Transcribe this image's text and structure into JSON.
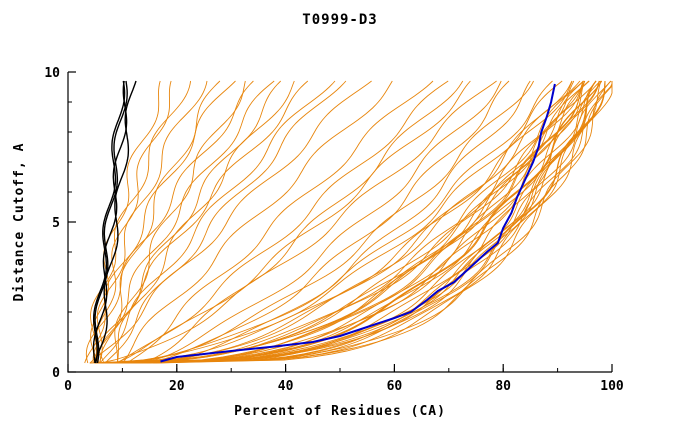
{
  "chart_data": {
    "type": "line",
    "title": "T0999-D3",
    "xlabel": "Percent of Residues (CA)",
    "ylabel": "Distance Cutoff, A",
    "xlim": [
      0,
      100
    ],
    "ylim": [
      0,
      10
    ],
    "x_ticks": [
      0,
      20,
      40,
      60,
      80,
      100
    ],
    "y_ticks": [
      0,
      5,
      10
    ],
    "x_minor_step": 10,
    "y_minor_step": 1,
    "grid": false,
    "legend": "none",
    "colors": {
      "ensemble": "#e8860d",
      "highlight": "#0000cc",
      "reference": "#000000",
      "axis": "#000000"
    },
    "curve_model": "ensemble/reference curves encoded as [x_at_bottom, x_at_top, shape_exponent p]; x(y) = x0 + (x1-x0)*(((y-0.3)/9.4)^p) for y in [0.3, 9.7]",
    "highlight_curve_points": [
      [
        17,
        0.35
      ],
      [
        20,
        0.5
      ],
      [
        30,
        0.7
      ],
      [
        38,
        0.85
      ],
      [
        45,
        1.0
      ],
      [
        50,
        1.2
      ],
      [
        55,
        1.5
      ],
      [
        60,
        1.8
      ],
      [
        63,
        2.0
      ],
      [
        66,
        2.4
      ],
      [
        68,
        2.7
      ],
      [
        71,
        3.0
      ],
      [
        74,
        3.5
      ],
      [
        77,
        4.0
      ],
      [
        79,
        4.3
      ],
      [
        80,
        4.8
      ],
      [
        81.5,
        5.3
      ],
      [
        82.5,
        5.8
      ],
      [
        83.5,
        6.2
      ],
      [
        84.5,
        6.6
      ],
      [
        85.5,
        7.0
      ],
      [
        86.5,
        7.5
      ],
      [
        87,
        8.0
      ],
      [
        88,
        8.5
      ],
      [
        88.8,
        9.0
      ],
      [
        89.5,
        9.6
      ]
    ],
    "reference_curves": [
      [
        4.5,
        10,
        1.0
      ],
      [
        5.0,
        11,
        1.0
      ],
      [
        5.5,
        12,
        0.95
      ],
      [
        4.8,
        10.5,
        1.05
      ]
    ],
    "ensemble_curves": [
      [
        6,
        97,
        0.3
      ],
      [
        8,
        99,
        0.28
      ],
      [
        10,
        96,
        0.35
      ],
      [
        12,
        98,
        0.32
      ],
      [
        7,
        95,
        0.4
      ],
      [
        9,
        100,
        0.3
      ],
      [
        14,
        97,
        0.38
      ],
      [
        5,
        94,
        0.33
      ],
      [
        11,
        99,
        0.27
      ],
      [
        13,
        96,
        0.42
      ],
      [
        8,
        98,
        0.36
      ],
      [
        6,
        100,
        0.25
      ],
      [
        15,
        95,
        0.45
      ],
      [
        10,
        93,
        0.5
      ],
      [
        7,
        97,
        0.34
      ],
      [
        12,
        99,
        0.29
      ],
      [
        9,
        94,
        0.44
      ],
      [
        16,
        98,
        0.31
      ],
      [
        5,
        96,
        0.39
      ],
      [
        11,
        100,
        0.26
      ],
      [
        13,
        97,
        0.37
      ],
      [
        8,
        92,
        0.48
      ],
      [
        6,
        95,
        0.41
      ],
      [
        14,
        99,
        0.33
      ],
      [
        10,
        98,
        0.3
      ],
      [
        7,
        91,
        0.52
      ],
      [
        12,
        94,
        0.46
      ],
      [
        9,
        97,
        0.35
      ],
      [
        15,
        100,
        0.28
      ],
      [
        6,
        93,
        0.49
      ],
      [
        11,
        96,
        0.4
      ],
      [
        8,
        90,
        0.55
      ],
      [
        13,
        98,
        0.34
      ],
      [
        10,
        99,
        0.31
      ],
      [
        7,
        96,
        0.43
      ],
      [
        9,
        85,
        0.6
      ],
      [
        12,
        80,
        0.7
      ],
      [
        8,
        75,
        0.8
      ],
      [
        14,
        82,
        0.65
      ],
      [
        10,
        70,
        0.9
      ],
      [
        7,
        78,
        0.75
      ],
      [
        11,
        66,
        1.0
      ],
      [
        13,
        72,
        0.85
      ],
      [
        9,
        60,
        1.05
      ],
      [
        15,
        86,
        0.6
      ],
      [
        5,
        45,
        1.2
      ],
      [
        6,
        38,
        1.3
      ],
      [
        4,
        30,
        1.4
      ],
      [
        7,
        50,
        1.1
      ],
      [
        5,
        25,
        1.5
      ],
      [
        8,
        42,
        1.25
      ],
      [
        6,
        20,
        1.6
      ],
      [
        4,
        35,
        1.35
      ],
      [
        7,
        28,
        1.45
      ],
      [
        5,
        55,
        1.05
      ],
      [
        6,
        48,
        1.15
      ],
      [
        4,
        22,
        1.55
      ],
      [
        8,
        33,
        1.3
      ],
      [
        5,
        18,
        1.7
      ],
      [
        6,
        40,
        1.2
      ]
    ]
  }
}
